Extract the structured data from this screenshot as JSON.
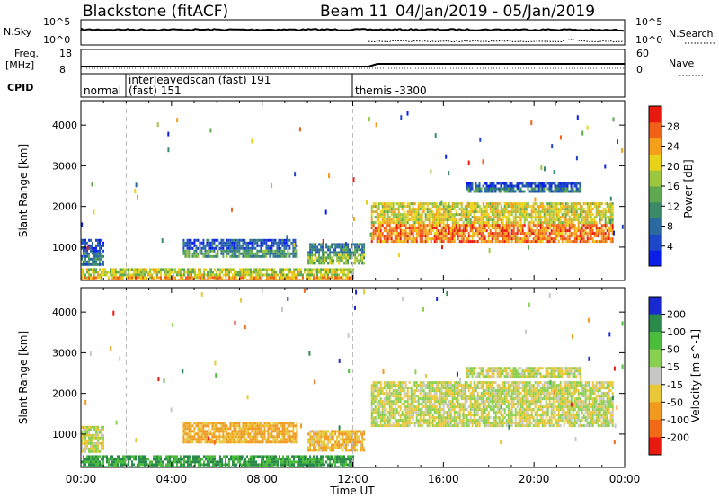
{
  "header": {
    "station": "Blackstone (fitACF)",
    "beam": "Beam 11",
    "date_range": "04/Jan/2019 - 05/Jan/2019"
  },
  "panels": {
    "nsky_label": "N.Sky",
    "nsearch_label": "N.Search",
    "freq_label_top": "Freq.",
    "freq_label_bottom": "[MHz]",
    "nave_label": "Nave",
    "cpid_label": "CPID",
    "nsky_ticks": [
      "10^5",
      "10^0"
    ],
    "nsearch_ticks": [
      "10^5",
      "10^0"
    ],
    "freq_ticks": [
      "18",
      "8"
    ],
    "nave_ticks": [
      "60",
      "0"
    ]
  },
  "cpid": {
    "segments": [
      {
        "start": 0,
        "end": 2,
        "label": "normal"
      },
      {
        "start": 2,
        "end": 12,
        "label": "interleavedscan (fast) 191",
        "sublabel": "(fast) 151"
      },
      {
        "start": 12,
        "end": 24,
        "label": "themis -3300"
      }
    ]
  },
  "chart_data": [
    {
      "type": "heatmap",
      "quantity": "Power",
      "ylabel": "Slant Range [km]",
      "xlabel": "Time UT",
      "x_range_hours": [
        0,
        24
      ],
      "x_ticks": [
        "00:00",
        "04:00",
        "08:00",
        "12:00",
        "16:00",
        "20:00",
        "00:00"
      ],
      "ylim": [
        180,
        4600
      ],
      "y_ticks": [
        1000,
        2000,
        3000,
        4000
      ],
      "colorbar": {
        "label": "Power [dB]",
        "range": [
          0,
          32
        ],
        "ticks": [
          4,
          8,
          12,
          16,
          20,
          24,
          28
        ],
        "colors": [
          "#0a1ee6",
          "#1e46c8",
          "#2a6a9e",
          "#3a8a6a",
          "#5fa850",
          "#9cc640",
          "#e8d21a",
          "#f5a01a",
          "#f06018",
          "#e81a10"
        ]
      },
      "regions": [
        {
          "t": [
            0.0,
            12.0
          ],
          "r": [
            200,
            480
          ],
          "power": 20
        },
        {
          "t": [
            0.0,
            1.0
          ],
          "r": [
            600,
            1200
          ],
          "power": 6
        },
        {
          "t": [
            4.5,
            9.5
          ],
          "r": [
            800,
            1200
          ],
          "power": 8
        },
        {
          "t": [
            10.0,
            12.5
          ],
          "r": [
            600,
            1100
          ],
          "power": 12
        },
        {
          "t": [
            12.8,
            23.5
          ],
          "r": [
            1150,
            2100
          ],
          "power": 22
        },
        {
          "t": [
            17.0,
            22.0
          ],
          "r": [
            2400,
            2600
          ],
          "power": 6
        }
      ]
    },
    {
      "type": "heatmap",
      "quantity": "Velocity",
      "ylabel": "Slant Range [km]",
      "xlabel": "Time UT",
      "x_range_hours": [
        0,
        24
      ],
      "x_ticks": [
        "00:00",
        "04:00",
        "08:00",
        "12:00",
        "16:00",
        "20:00",
        "00:00"
      ],
      "ylim": [
        180,
        4600
      ],
      "y_ticks": [
        1000,
        2000,
        3000,
        4000
      ],
      "colorbar": {
        "label": "Velocity [m s^-1]",
        "ticks": [
          200,
          100,
          50,
          15,
          -15,
          -50,
          -100,
          -200
        ],
        "colors": [
          "#1a2ad0",
          "#2a8a4a",
          "#4cbc3c",
          "#8ad050",
          "#c8c8c4",
          "#e8c838",
          "#f09a20",
          "#f06a18",
          "#e81a10"
        ]
      },
      "regions": [
        {
          "t": [
            0.0,
            12.0
          ],
          "r": [
            200,
            480
          ],
          "velocity": 80
        },
        {
          "t": [
            0.0,
            1.0
          ],
          "r": [
            600,
            1200
          ],
          "velocity": 0
        },
        {
          "t": [
            4.5,
            9.5
          ],
          "r": [
            800,
            1300
          ],
          "velocity": -40
        },
        {
          "t": [
            10.0,
            12.5
          ],
          "r": [
            600,
            1100
          ],
          "velocity": -30
        },
        {
          "t": [
            12.8,
            23.5
          ],
          "r": [
            1200,
            2300
          ],
          "velocity": 0
        },
        {
          "t": [
            17.0,
            22.0
          ],
          "r": [
            2400,
            2650
          ],
          "velocity": 0
        }
      ]
    }
  ]
}
